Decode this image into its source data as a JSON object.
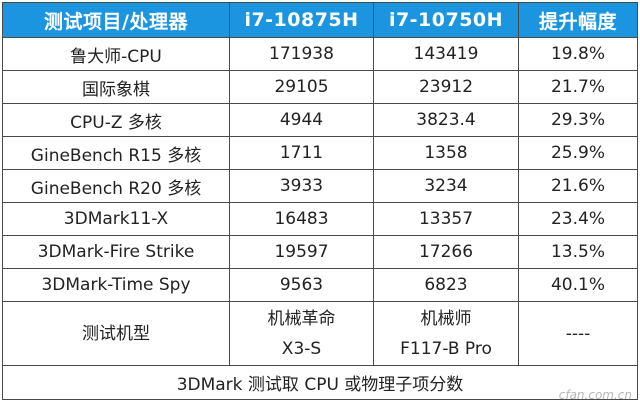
{
  "table": {
    "headers": [
      "测试项目/处理器",
      "i7-10875H",
      "i7-10750H",
      "提升幅度"
    ],
    "rows": [
      [
        "鲁大师-CPU",
        "171938",
        "143419",
        "19.8%"
      ],
      [
        "国际象棋",
        "29105",
        "23912",
        "21.7%"
      ],
      [
        "CPU-Z 多核",
        "4944",
        "3823.4",
        "29.3%"
      ],
      [
        "GineBench R15 多核",
        "1711",
        "1358",
        "25.9%"
      ],
      [
        "GineBench R20 多核",
        "3933",
        "3234",
        "21.6%"
      ],
      [
        "3DMark11-X",
        "16483",
        "13357",
        "23.4%"
      ],
      [
        "3DMark-Fire Strike",
        "19597",
        "17266",
        "13.5%"
      ],
      [
        "3DMark-Time Spy",
        "9563",
        "6823",
        "40.1%"
      ]
    ],
    "model_row": {
      "label": "测试机型",
      "m1_line1": "机械革命",
      "m1_line2": "X3-S",
      "m2_line1": "机械师",
      "m2_line2": "F117-B Pro",
      "gain": "----"
    },
    "footnote": "3DMark 测试取 CPU 或物理子项分数"
  },
  "watermark": "cfan.com.cn",
  "colors": {
    "header_bg": "#1b95e0",
    "header_text": "#ffffff",
    "border": "#4a4a4a"
  }
}
